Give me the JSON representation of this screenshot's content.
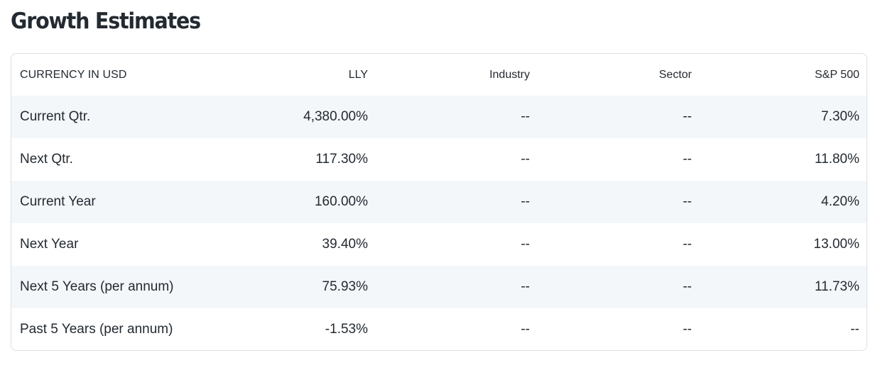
{
  "section": {
    "title": "Growth Estimates"
  },
  "table": {
    "headers": {
      "label": "CURRENCY IN USD",
      "lly": "LLY",
      "industry": "Industry",
      "sector": "Sector",
      "sp500": "S&P 500"
    },
    "rows": [
      {
        "label": "Current Qtr.",
        "lly": "4,380.00%",
        "industry": "--",
        "sector": "--",
        "sp500": "7.30%"
      },
      {
        "label": "Next Qtr.",
        "lly": "117.30%",
        "industry": "--",
        "sector": "--",
        "sp500": "11.80%"
      },
      {
        "label": "Current Year",
        "lly": "160.00%",
        "industry": "--",
        "sector": "--",
        "sp500": "4.20%"
      },
      {
        "label": "Next Year",
        "lly": "39.40%",
        "industry": "--",
        "sector": "--",
        "sp500": "13.00%"
      },
      {
        "label": "Next 5 Years (per annum)",
        "lly": "75.93%",
        "industry": "--",
        "sector": "--",
        "sp500": "11.73%"
      },
      {
        "label": "Past 5 Years (per annum)",
        "lly": "-1.53%",
        "industry": "--",
        "sector": "--",
        "sp500": "--"
      }
    ]
  },
  "colors": {
    "text": "#232a31",
    "stripe": "#f4f7fa",
    "border": "#dcdfe3"
  }
}
